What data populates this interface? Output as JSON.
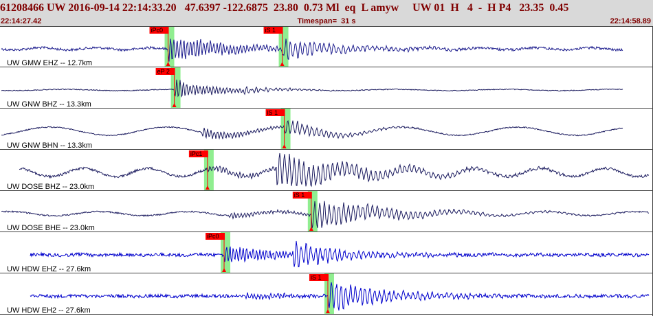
{
  "header": {
    "title": "61208466 UW 2016-09-14 22:14:33.20   47.6397 -122.6875  23.80  0.73 Ml  eq  L amyw     UW 01  H   4  -  H P4   23.35  0.45",
    "start_time": "22:14:27.42",
    "timespan": "Timespan=  31 s",
    "end_time": "22:14:58.89"
  },
  "colors": {
    "header_bg": "#d9d9d9",
    "header_text": "#800000",
    "pick_window": "#90ee90",
    "pick_flag": "#ff0000",
    "trace_blue": "#0000cc",
    "trace_navy": "#1a1a5e",
    "separator": "#404040"
  },
  "channels": [
    {
      "label": "UW GMW EHZ -- 12.7km",
      "color": "navy_blue",
      "picks": [
        {
          "label": "iPc0",
          "time_s": 8.1
        },
        {
          "label": "iS 1",
          "time_s": 13.6
        }
      ]
    },
    {
      "label": "UW GNW BHZ -- 13.3km",
      "color": "navy",
      "picks": [
        {
          "label": "eP 2",
          "time_s": 8.4
        }
      ]
    },
    {
      "label": "UW GNW BHN -- 13.3km",
      "color": "navy",
      "picks": [
        {
          "label": "iS 1",
          "time_s": 13.7
        }
      ]
    },
    {
      "label": "UW DOSE BHZ -- 23.0km",
      "color": "navy",
      "picks": [
        {
          "label": "iPc1",
          "time_s": 10.0
        }
      ]
    },
    {
      "label": "UW DOSE BHE -- 23.0km",
      "color": "navy",
      "picks": [
        {
          "label": "iS 1",
          "time_s": 15.0
        }
      ]
    },
    {
      "label": "UW HDW EHZ -- 27.6km",
      "color": "blue",
      "picks": [
        {
          "label": "iPc0",
          "time_s": 10.8
        }
      ]
    },
    {
      "label": "UW HDW EH2 -- 27.6km",
      "color": "blue",
      "picks": [
        {
          "label": "iS 1",
          "time_s": 15.8
        }
      ]
    }
  ]
}
